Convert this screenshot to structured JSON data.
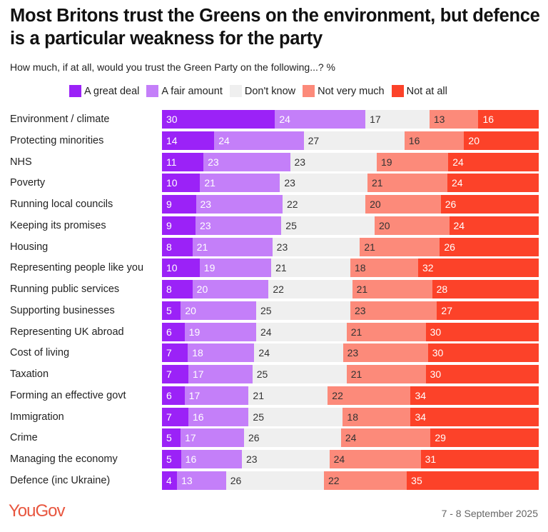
{
  "title": "Most Britons trust the Greens on the environment, but defence is a particular weakness for the party",
  "subtitle": "How much, if at all, would you trust the Green Party on the following...? %",
  "footer": {
    "logo": "YouGov",
    "date": "7 - 8 September 2025"
  },
  "chart_data": {
    "type": "bar",
    "orientation": "horizontal-stacked-100",
    "legend_position": "top",
    "series": [
      {
        "name": "A great deal",
        "color": "#9b22f7",
        "text_color": "#ffffff",
        "values": [
          30,
          14,
          11,
          10,
          9,
          9,
          8,
          10,
          8,
          5,
          6,
          7,
          7,
          6,
          7,
          5,
          5,
          4
        ]
      },
      {
        "name": "A fair amount",
        "color": "#c47ff9",
        "text_color": "#ffffff",
        "values": [
          24,
          24,
          23,
          21,
          23,
          23,
          21,
          19,
          20,
          20,
          19,
          18,
          17,
          17,
          16,
          17,
          16,
          13
        ]
      },
      {
        "name": "Don't know",
        "color": "#efefef",
        "text_color": "#333333",
        "values": [
          17,
          27,
          23,
          23,
          22,
          25,
          23,
          21,
          22,
          25,
          24,
          24,
          25,
          21,
          25,
          26,
          23,
          26
        ]
      },
      {
        "name": "Not very much",
        "color": "#fc8a7a",
        "text_color": "#333333",
        "values": [
          13,
          16,
          19,
          21,
          20,
          20,
          21,
          18,
          21,
          23,
          21,
          23,
          21,
          22,
          18,
          24,
          24,
          22
        ]
      },
      {
        "name": "Not at all",
        "color": "#fc4229",
        "text_color": "#ffffff",
        "values": [
          16,
          20,
          24,
          24,
          26,
          24,
          26,
          32,
          28,
          27,
          30,
          30,
          30,
          34,
          34,
          29,
          31,
          35
        ]
      }
    ],
    "categories": [
      "Environment / climate",
      "Protecting minorities",
      "NHS",
      "Poverty",
      "Running local councils",
      "Keeping its promises",
      "Housing",
      "Representing people like you",
      "Running public services",
      "Supporting businesses",
      "Representing UK abroad",
      "Cost of living",
      "Taxation",
      "Forming an effective govt",
      "Immigration",
      "Crime",
      "Managing the economy",
      "Defence (inc Ukraine)"
    ]
  }
}
